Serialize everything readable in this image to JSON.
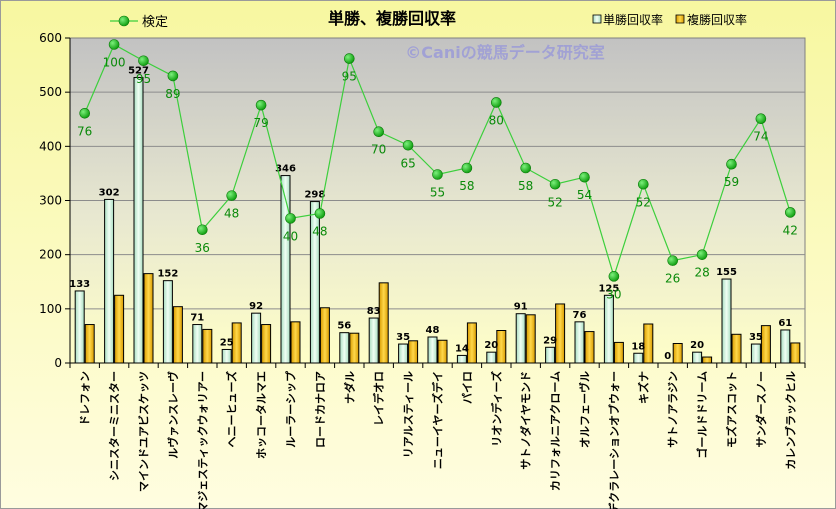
{
  "chart_data": {
    "type": "bar",
    "title": "単勝、複勝回収率",
    "watermark": "©Caniの競馬データ研究室",
    "categories": [
      "ドレフォン",
      "シニスターミニスター",
      "マインドユアビスケッツ",
      "ルヴァンスレーヴ",
      "マジェスティックウォリアー",
      "ヘニーヒューズ",
      "ホッコータルマエ",
      "ルーラーシップ",
      "ロードカナロア",
      "ナダル",
      "レイデオロ",
      "リアルスティール",
      "ニューイヤーズデイ",
      "パイロ",
      "リオンディーズ",
      "サトノダイヤモンド",
      "カリフォルニアクローム",
      "オルフェーヴル",
      "デクラレーションオブウォー",
      "キズナ",
      "サトノアラジン",
      "ゴールドドリーム",
      "モズアスコット",
      "サンダースノー",
      "カレンブラックヒル"
    ],
    "series": [
      {
        "name": "単勝回収率",
        "kind": "bar",
        "color": "#cfeedd",
        "values": [
          133,
          302,
          527,
          152,
          71,
          25,
          92,
          346,
          298,
          56,
          83,
          35,
          48,
          14,
          20,
          91,
          29,
          76,
          125,
          18,
          0,
          20,
          155,
          35,
          61
        ],
        "labels": [
          "133",
          "302",
          "527",
          "152",
          "71",
          "25",
          "92",
          "346",
          "298",
          "56",
          "83",
          "35",
          "48",
          "14",
          "20",
          "91",
          "29",
          "76",
          "125",
          "18",
          "0",
          "20",
          "155",
          "35",
          "61"
        ]
      },
      {
        "name": "複勝回収率",
        "kind": "bar",
        "color": "#f2b90f",
        "values": [
          71,
          125,
          165,
          104,
          62,
          74,
          71,
          76,
          102,
          55,
          148,
          41,
          42,
          74,
          60,
          89,
          109,
          58,
          38,
          72,
          36,
          11,
          53,
          69,
          37
        ]
      },
      {
        "name": "検定",
        "kind": "line",
        "color": "#18b418",
        "values": [
          461,
          588,
          558,
          530,
          246,
          309,
          476,
          267,
          276,
          562,
          427,
          402,
          348,
          360,
          481,
          360,
          330,
          343,
          160,
          330,
          189,
          200,
          367,
          451,
          278
        ],
        "labels": [
          "76",
          "100",
          "95",
          "89",
          "36",
          "48",
          "79",
          "40",
          "48",
          "95",
          "70",
          "65",
          "55",
          "58",
          "80",
          "58",
          "52",
          "54",
          "30",
          "52",
          "26",
          "28",
          "59",
          "74",
          "42"
        ]
      }
    ],
    "ylim": [
      0,
      600
    ],
    "yticks": [
      0,
      100,
      200,
      300,
      400,
      500,
      600
    ],
    "grid": true,
    "legend": "top"
  }
}
